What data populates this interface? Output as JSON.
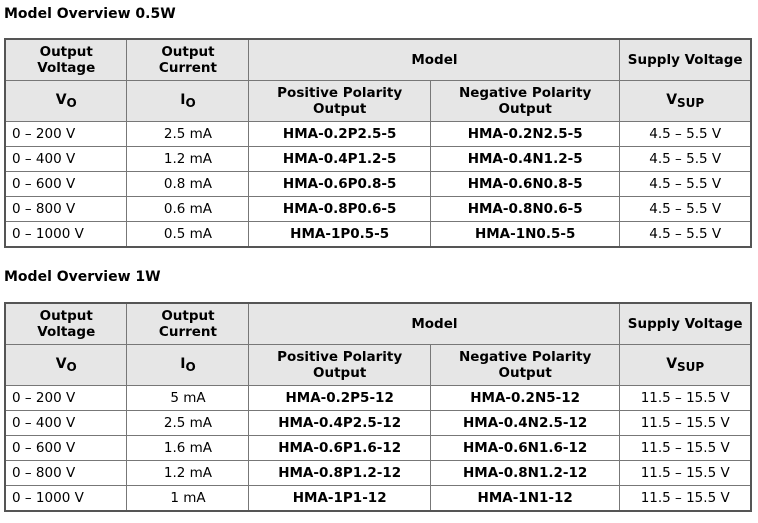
{
  "sections": [
    {
      "title": "Model Overview 0.5W",
      "headers": {
        "output_voltage": "Output Voltage",
        "output_current": "Output Current",
        "model": "Model",
        "supply_voltage": "Supply Voltage",
        "vo_sym": "V",
        "vo_sub": "O",
        "io_sym": "I",
        "io_sub": "O",
        "positive": "Positive Polarity Output",
        "negative": "Negative Polarity Output",
        "vsup_sym": "V",
        "vsup_sub": "SUP"
      },
      "rows": [
        {
          "voltage": "0 – 200 V",
          "current": "2.5 mA",
          "positive": "HMA-0.2P2.5-5",
          "negative": "HMA-0.2N2.5-5",
          "supply": "4.5 – 5.5 V"
        },
        {
          "voltage": "0 – 400 V",
          "current": "1.2 mA",
          "positive": "HMA-0.4P1.2-5",
          "negative": "HMA-0.4N1.2-5",
          "supply": "4.5 – 5.5 V"
        },
        {
          "voltage": "0 – 600 V",
          "current": "0.8 mA",
          "positive": "HMA-0.6P0.8-5",
          "negative": "HMA-0.6N0.8-5",
          "supply": "4.5 – 5.5 V"
        },
        {
          "voltage": "0 – 800 V",
          "current": "0.6 mA",
          "positive": "HMA-0.8P0.6-5",
          "negative": "HMA-0.8N0.6-5",
          "supply": "4.5 – 5.5 V"
        },
        {
          "voltage": "0 – 1000 V",
          "current": "0.5 mA",
          "positive": "HMA-1P0.5-5",
          "negative": "HMA-1N0.5-5",
          "supply": "4.5 – 5.5 V"
        }
      ]
    },
    {
      "title": "Model Overview 1W",
      "headers": {
        "output_voltage": "Output Voltage",
        "output_current": "Output Current",
        "model": "Model",
        "supply_voltage": "Supply Voltage",
        "vo_sym": "V",
        "vo_sub": "O",
        "io_sym": "I",
        "io_sub": "O",
        "positive": "Positive Polarity Output",
        "negative": "Negative Polarity Output",
        "vsup_sym": "V",
        "vsup_sub": "SUP"
      },
      "rows": [
        {
          "voltage": "0 – 200 V",
          "current": "5 mA",
          "positive": "HMA-0.2P5-12",
          "negative": "HMA-0.2N5-12",
          "supply": "11.5 – 15.5 V"
        },
        {
          "voltage": "0 – 400 V",
          "current": "2.5 mA",
          "positive": "HMA-0.4P2.5-12",
          "negative": "HMA-0.4N2.5-12",
          "supply": "11.5 – 15.5 V"
        },
        {
          "voltage": "0 – 600 V",
          "current": "1.6 mA",
          "positive": "HMA-0.6P1.6-12",
          "negative": "HMA-0.6N1.6-12",
          "supply": "11.5 – 15.5 V"
        },
        {
          "voltage": "0 – 800 V",
          "current": "1.2 mA",
          "positive": "HMA-0.8P1.2-12",
          "negative": "HMA-0.8N1.2-12",
          "supply": "11.5 – 15.5 V"
        },
        {
          "voltage": "0 – 1000 V",
          "current": "1 mA",
          "positive": "HMA-1P1-12",
          "negative": "HMA-1N1-12",
          "supply": "11.5 – 15.5 V"
        }
      ]
    }
  ]
}
